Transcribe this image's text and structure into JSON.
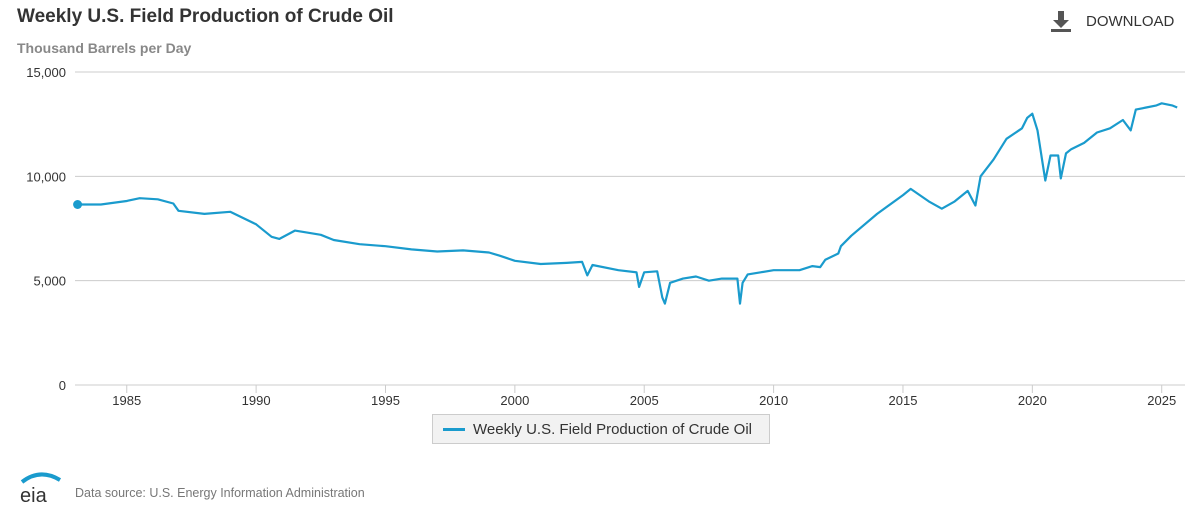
{
  "header": {
    "title": "Weekly U.S. Field Production of Crude Oil",
    "subtitle": "Thousand Barrels per Day",
    "download_label": "DOWNLOAD"
  },
  "footer": {
    "logo_text": "eia",
    "source": "Data source: U.S. Energy Information Administration"
  },
  "colors": {
    "series": "#1a9bcd",
    "grid": "#cccccc",
    "axis_text": "#333333"
  },
  "chart_data": {
    "type": "line",
    "title": "Weekly U.S. Field Production of Crude Oil",
    "subtitle": "Thousand Barrels per Day",
    "xlabel": "",
    "ylabel": "",
    "xlim": [
      1983.0,
      2025.9
    ],
    "ylim": [
      0,
      15000
    ],
    "y_ticks": [
      0,
      5000,
      10000,
      15000
    ],
    "y_tick_labels": [
      "0",
      "5,000",
      "10,000",
      "15,000"
    ],
    "x_ticks": [
      1985,
      1990,
      1995,
      2000,
      2005,
      2010,
      2015,
      2020,
      2025
    ],
    "x_tick_labels": [
      "1985",
      "1990",
      "1995",
      "2000",
      "2005",
      "2010",
      "2015",
      "2020",
      "2025"
    ],
    "grid": true,
    "legend_position": "bottom-center",
    "series": [
      {
        "name": "Weekly U.S. Field Production of Crude Oil",
        "color": "#1a9bcd",
        "x": [
          1983.1,
          1984.0,
          1985.0,
          1985.5,
          1986.2,
          1986.8,
          1987.0,
          1988.0,
          1989.0,
          1990.0,
          1990.6,
          1990.9,
          1991.5,
          1992.0,
          1992.5,
          1993.0,
          1994.0,
          1995.0,
          1996.0,
          1997.0,
          1998.0,
          1999.0,
          1999.4,
          2000.0,
          2001.0,
          2002.0,
          2002.6,
          2002.8,
          2003.0,
          2004.0,
          2004.7,
          2004.8,
          2005.0,
          2005.5,
          2005.7,
          2005.8,
          2006.0,
          2006.5,
          2007.0,
          2007.5,
          2008.0,
          2008.6,
          2008.7,
          2008.8,
          2009.0,
          2009.5,
          2010.0,
          2011.0,
          2011.5,
          2011.8,
          2012.0,
          2012.5,
          2012.6,
          2013.0,
          2014.0,
          2015.0,
          2015.3,
          2016.0,
          2016.5,
          2017.0,
          2017.5,
          2017.8,
          2018.0,
          2018.5,
          2019.0,
          2019.6,
          2019.8,
          2020.0,
          2020.2,
          2020.4,
          2020.5,
          2020.7,
          2021.0,
          2021.1,
          2021.3,
          2021.5,
          2022.0,
          2022.5,
          2023.0,
          2023.5,
          2023.8,
          2024.0,
          2024.4,
          2024.8,
          2025.0,
          2025.4,
          2025.6
        ],
        "y": [
          8650,
          8650,
          8820,
          8950,
          8900,
          8700,
          8350,
          8200,
          8300,
          7700,
          7100,
          7000,
          7400,
          7300,
          7200,
          6950,
          6750,
          6650,
          6500,
          6400,
          6450,
          6350,
          6200,
          5950,
          5800,
          5850,
          5900,
          5250,
          5750,
          5500,
          5400,
          4700,
          5400,
          5450,
          4200,
          3900,
          4900,
          5100,
          5200,
          5000,
          5100,
          5100,
          3900,
          4900,
          5300,
          5400,
          5500,
          5500,
          5700,
          5650,
          6000,
          6300,
          6650,
          7150,
          8200,
          9100,
          9400,
          8800,
          8450,
          8800,
          9300,
          8600,
          10000,
          10800,
          11800,
          12300,
          12800,
          13000,
          12200,
          10600,
          9800,
          11000,
          11000,
          9900,
          11100,
          11300,
          11600,
          12100,
          12300,
          12700,
          12200,
          13200,
          13300,
          13400,
          13500,
          13400,
          13300
        ]
      }
    ]
  }
}
